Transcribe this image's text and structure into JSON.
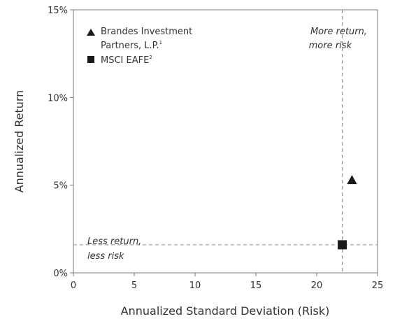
{
  "chart_data": {
    "type": "scatter",
    "xlabel": "Annualized Standard Deviation (Risk)",
    "ylabel": "Annualized Return",
    "xlim": [
      0,
      25
    ],
    "ylim": [
      0,
      15
    ],
    "x_ticks": [
      "0",
      "5",
      "10",
      "15",
      "20",
      "25"
    ],
    "y_ticks": [
      "0%",
      "5%",
      "10%",
      "15%"
    ],
    "series": [
      {
        "legend_line1": "Brandes Investment",
        "legend_line2": "Partners, L.P.",
        "legend_sup": "1",
        "marker": "triangle",
        "x": 22.9,
        "y": 5.3
      },
      {
        "legend_line1": "MSCI EAFE",
        "legend_sup": "2",
        "marker": "square",
        "x": 22.1,
        "y": 1.6
      }
    ],
    "reference_lines": {
      "x": 22.1,
      "y": 1.6
    },
    "annotations": {
      "upper_right": [
        "More return,",
        "more risk"
      ],
      "lower_left": [
        "Less return,",
        "less risk"
      ]
    },
    "marker_color": "#1a1a1a",
    "reference_line_color": "#8c8c8c",
    "grid": false
  }
}
